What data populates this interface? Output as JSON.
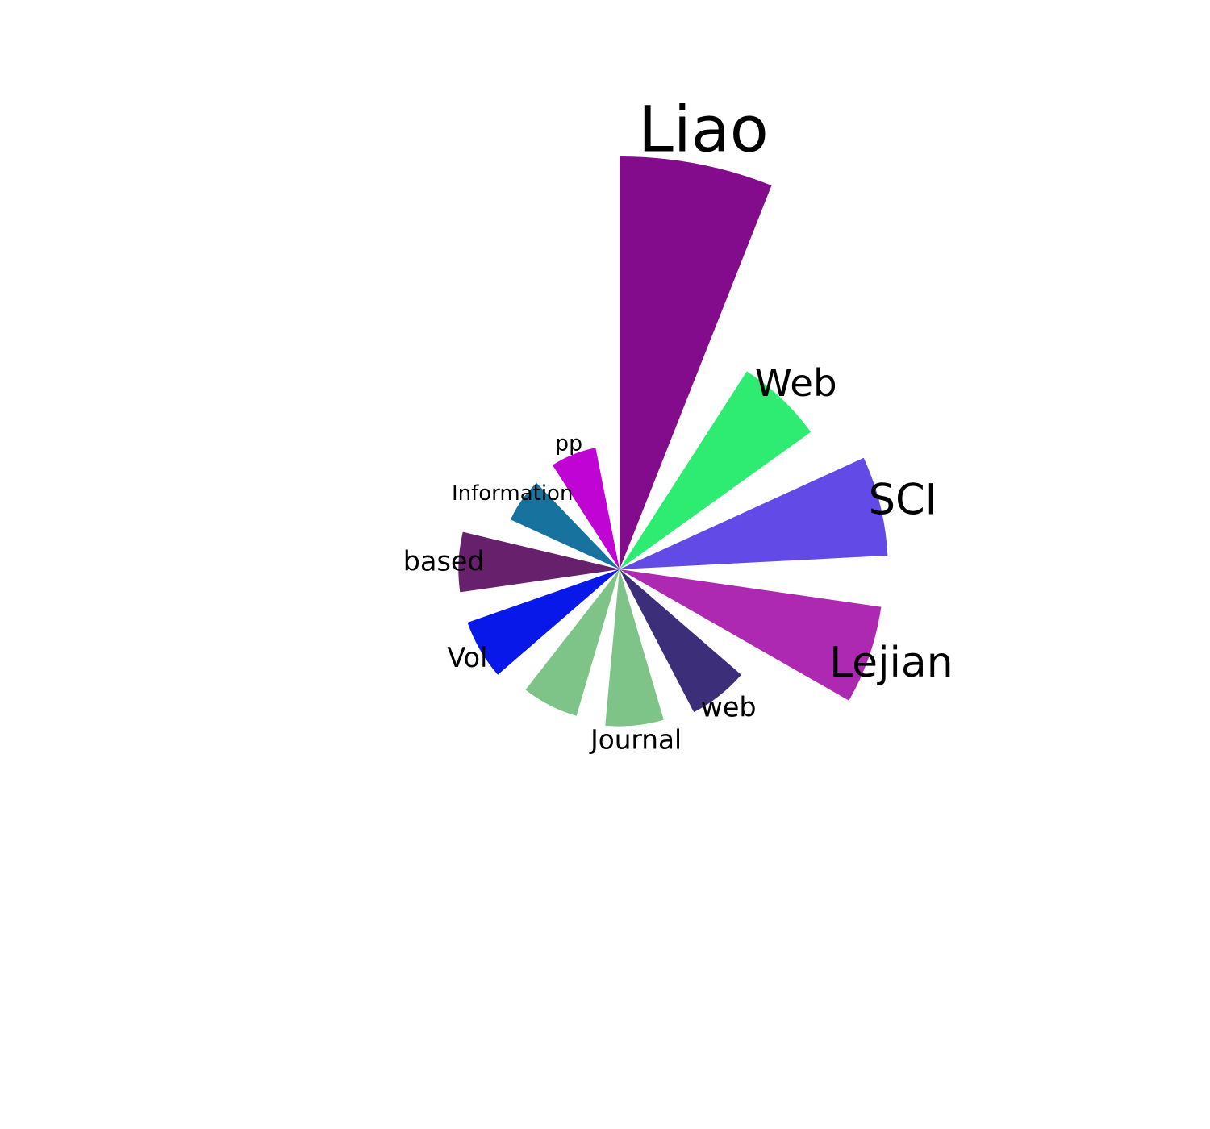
{
  "chart_data": {
    "type": "polar-bar",
    "title": "",
    "categories": [
      "Liao",
      "Web",
      "SCI",
      "Lejian",
      "web",
      "Journal",
      "",
      "Vol",
      "based",
      "Information",
      "pp"
    ],
    "values": [
      100,
      57,
      65,
      64,
      39,
      38,
      37,
      39,
      39,
      29,
      30
    ],
    "colors": [
      "#820c8c",
      "#2eec71",
      "#614ae6",
      "#ae29b1",
      "#3c2e78",
      "#7ec488",
      "#7ec488",
      "#0818e8",
      "#66206c",
      "#17739e",
      "#c004d4"
    ],
    "rmax": 100,
    "grid": false,
    "legend": "none",
    "axis_labels": false
  }
}
